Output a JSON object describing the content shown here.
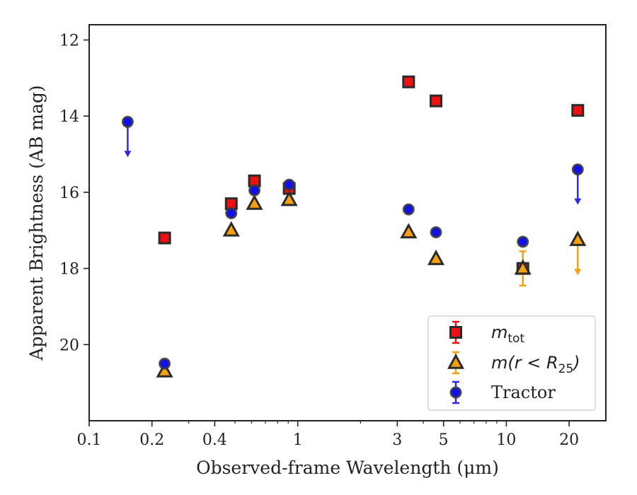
{
  "chart_data": {
    "type": "scatter",
    "title": "",
    "xlabel": "Observed-frame Wavelength (μm)",
    "ylabel": "Apparent Brightness (AB mag)",
    "xscale": "log",
    "xlim": [
      0.1,
      30
    ],
    "ylim": [
      22,
      11.6
    ],
    "yaxis_inverted": true,
    "xticks": [
      0.1,
      0.2,
      0.4,
      1,
      3,
      5,
      10,
      20
    ],
    "xtick_labels": [
      "0.1",
      "0.2",
      "0.4",
      "1",
      "3",
      "5",
      "10",
      "20"
    ],
    "yticks": [
      12,
      14,
      16,
      18,
      20
    ],
    "ytick_labels": [
      "12",
      "14",
      "16",
      "18",
      "20"
    ],
    "grid": false,
    "legend_position": "bottom-right",
    "series": [
      {
        "name": "m_tot",
        "legend_main": "m",
        "legend_sub": "tot",
        "marker": "square",
        "color": "#ee1111",
        "points": [
          {
            "x": 0.23,
            "y": 17.2
          },
          {
            "x": 0.48,
            "y": 16.3
          },
          {
            "x": 0.62,
            "y": 15.7
          },
          {
            "x": 0.91,
            "y": 15.9
          },
          {
            "x": 3.4,
            "y": 13.1
          },
          {
            "x": 4.6,
            "y": 13.6
          },
          {
            "x": 12.0,
            "y": 18.0
          },
          {
            "x": 22.0,
            "y": 13.85
          }
        ]
      },
      {
        "name": "m(r < R25)",
        "legend_main": "m(r < R",
        "legend_sub": "25",
        "legend_tail": ")",
        "marker": "triangle",
        "color": "#f5a00f",
        "points": [
          {
            "x": 0.23,
            "y": 20.7
          },
          {
            "x": 0.48,
            "y": 17.0
          },
          {
            "x": 0.62,
            "y": 16.3
          },
          {
            "x": 0.91,
            "y": 16.2
          },
          {
            "x": 3.4,
            "y": 17.05
          },
          {
            "x": 4.6,
            "y": 17.75
          },
          {
            "x": 12.0,
            "y": 18.0,
            "yerr": 0.45
          },
          {
            "x": 22.0,
            "y": 17.25,
            "upper_limit": true
          }
        ]
      },
      {
        "name": "Tractor",
        "marker": "circle",
        "color": "#1010ee",
        "points": [
          {
            "x": 0.153,
            "y": 14.15,
            "upper_limit": true
          },
          {
            "x": 0.23,
            "y": 20.5
          },
          {
            "x": 0.48,
            "y": 16.55
          },
          {
            "x": 0.62,
            "y": 15.95
          },
          {
            "x": 0.91,
            "y": 15.8
          },
          {
            "x": 3.4,
            "y": 16.45
          },
          {
            "x": 4.6,
            "y": 17.05
          },
          {
            "x": 12.0,
            "y": 17.3
          },
          {
            "x": 22.0,
            "y": 15.4,
            "upper_limit": true
          }
        ]
      }
    ]
  }
}
